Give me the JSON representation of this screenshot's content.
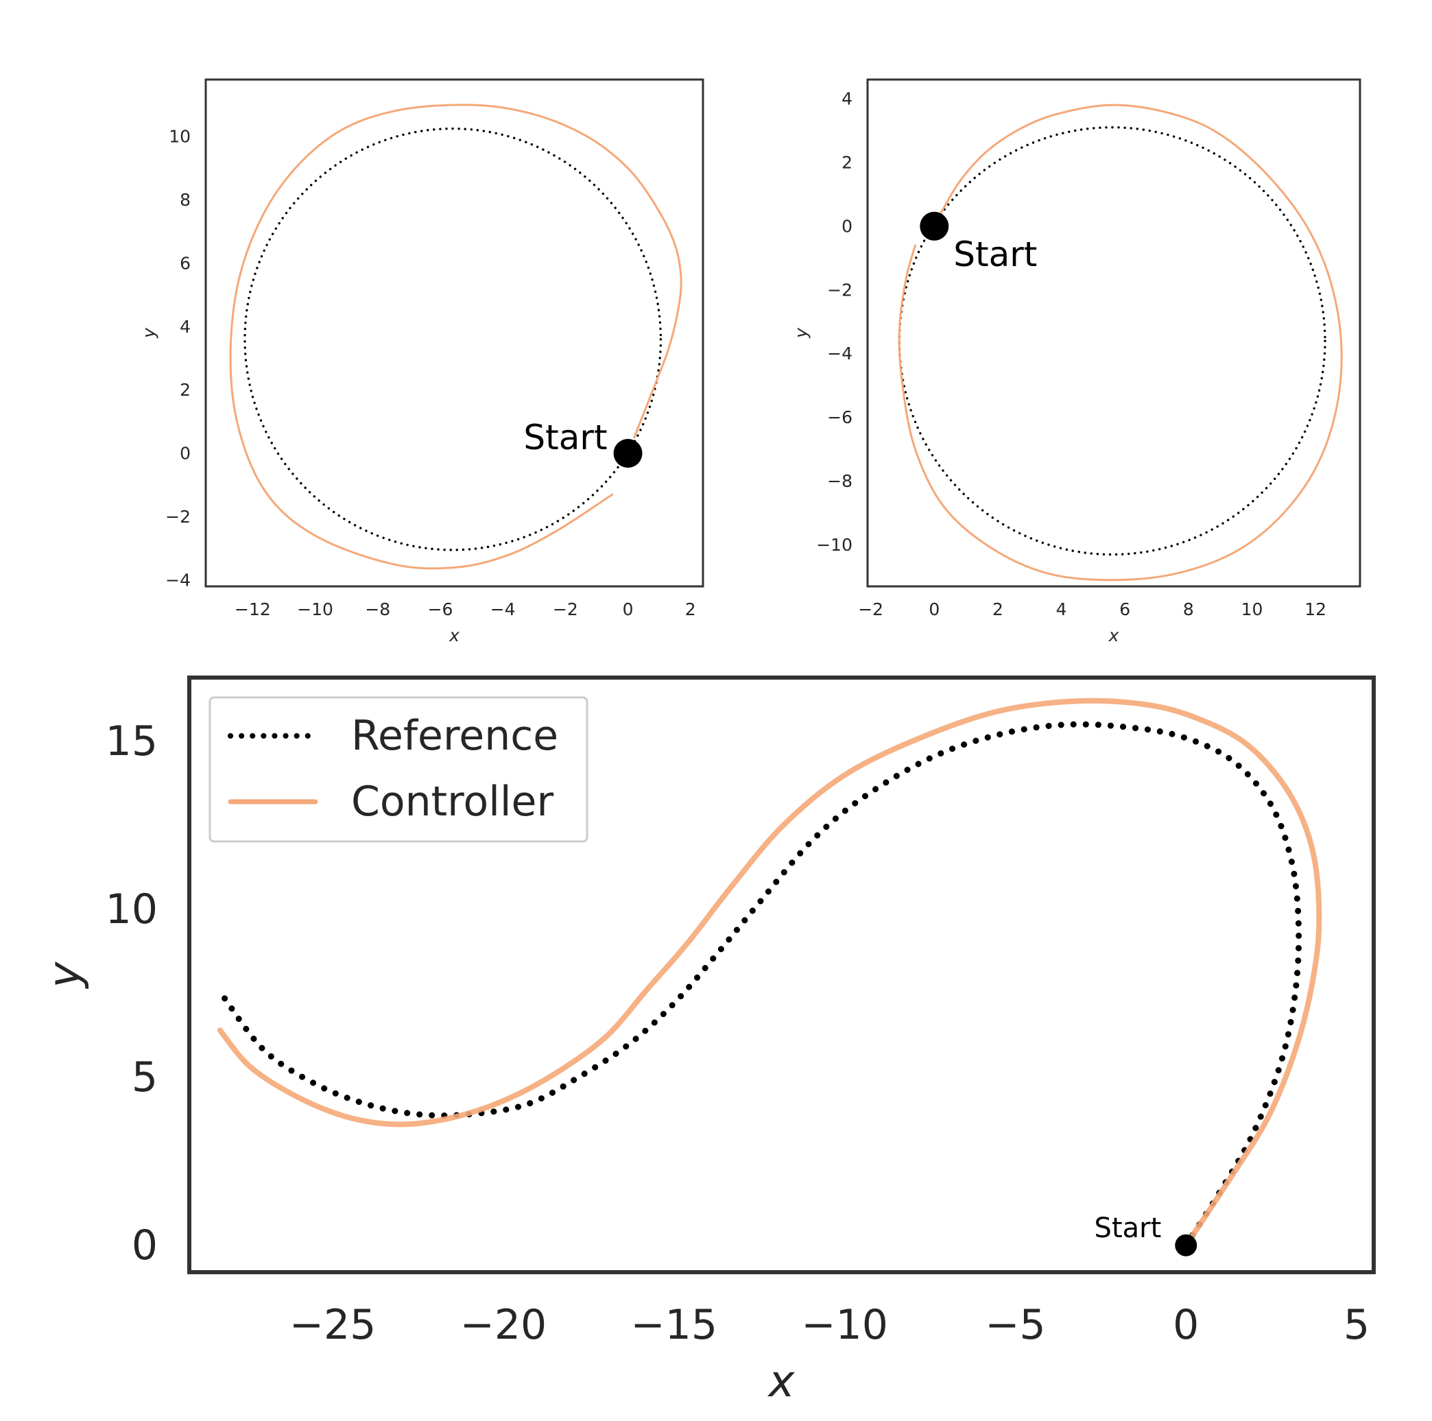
{
  "chart_data": [
    {
      "type": "line",
      "panel": "top-left",
      "xlabel": "x",
      "ylabel": "y",
      "xlim": [
        -13.5,
        2.4
      ],
      "ylim": [
        -4.2,
        11.8
      ],
      "xticks": [
        -12,
        -10,
        -8,
        -6,
        -4,
        -2,
        0,
        2
      ],
      "yticks": [
        -4,
        -2,
        0,
        2,
        4,
        6,
        8,
        10
      ],
      "xtick_labels": [
        "−12",
        "−10",
        "−8",
        "−6",
        "−4",
        "−2",
        "0",
        "2"
      ],
      "ytick_labels": [
        "−4",
        "−2",
        "0",
        "2",
        "4",
        "6",
        "8",
        "10"
      ],
      "grid": false,
      "annotation": {
        "text": "Start",
        "x": 0,
        "y": 0
      },
      "series": [
        {
          "role": "reference",
          "style": "dotted",
          "color": "#000000",
          "shape": "circle",
          "center": [
            -5.6,
            3.6
          ],
          "radius": 6.65
        },
        {
          "role": "controller",
          "style": "solid",
          "color": "#f5a878",
          "x": [
            0.2,
            0.8,
            1.3,
            1.6,
            1.7,
            1.5,
            0.9,
            0.0,
            -1.3,
            -3.0,
            -5.0,
            -7.5,
            -9.5,
            -11.2,
            -12.3,
            -12.7,
            -12.5,
            -11.6,
            -10.0,
            -7.5,
            -5.5,
            -3.8,
            -2.2,
            -0.5
          ],
          "y": [
            0.5,
            2.0,
            3.3,
            4.5,
            5.5,
            6.6,
            7.8,
            9.0,
            10.0,
            10.7,
            11.0,
            10.8,
            10.0,
            8.3,
            6.0,
            3.5,
            1.0,
            -1.2,
            -2.6,
            -3.5,
            -3.6,
            -3.2,
            -2.4,
            -1.3
          ]
        }
      ]
    },
    {
      "type": "line",
      "panel": "top-right",
      "xlabel": "x",
      "ylabel": "y",
      "xlim": [
        -2.1,
        13.4
      ],
      "ylim": [
        -11.3,
        4.6
      ],
      "xticks": [
        -2,
        0,
        2,
        4,
        6,
        8,
        10,
        12
      ],
      "yticks": [
        -10,
        -8,
        -6,
        -4,
        -2,
        0,
        2,
        4
      ],
      "xtick_labels": [
        "−2",
        "0",
        "2",
        "4",
        "6",
        "8",
        "10",
        "12"
      ],
      "ytick_labels": [
        "−10",
        "−8",
        "−6",
        "−4",
        "−2",
        "0",
        "2",
        "4"
      ],
      "grid": false,
      "annotation": {
        "text": "Start",
        "x": 0,
        "y": 0
      },
      "series": [
        {
          "role": "reference",
          "style": "dotted",
          "color": "#000000",
          "shape": "circle",
          "center": [
            5.6,
            -3.6
          ],
          "radius": 6.7
        },
        {
          "role": "controller",
          "style": "solid",
          "color": "#f5a878",
          "x": [
            0.2,
            0.8,
            1.6,
            2.6,
            3.8,
            5.5,
            7.2,
            8.8,
            10.3,
            11.6,
            12.4,
            12.8,
            12.7,
            12.1,
            11.0,
            9.5,
            7.6,
            5.6,
            3.6,
            1.8,
            0.3,
            -0.6,
            -1.0,
            -1.1,
            -0.9,
            -0.6
          ],
          "y": [
            0.4,
            1.4,
            2.3,
            3.0,
            3.5,
            3.8,
            3.6,
            3.0,
            1.8,
            0.2,
            -1.5,
            -3.5,
            -5.5,
            -7.4,
            -9.0,
            -10.2,
            -10.9,
            -11.1,
            -10.9,
            -10.1,
            -8.8,
            -7.0,
            -5.0,
            -3.3,
            -1.7,
            -0.6
          ]
        }
      ]
    },
    {
      "type": "line",
      "panel": "bottom",
      "xlabel": "x",
      "ylabel": "y",
      "xlim": [
        -29.2,
        5.5
      ],
      "ylim": [
        -0.8,
        16.9
      ],
      "xticks": [
        -25,
        -20,
        -15,
        -10,
        -5,
        0,
        5
      ],
      "yticks": [
        0,
        5,
        10,
        15
      ],
      "xtick_labels": [
        "−25",
        "−20",
        "−15",
        "−10",
        "−5",
        "0",
        "5"
      ],
      "ytick_labels": [
        "0",
        "5",
        "10",
        "15"
      ],
      "grid": false,
      "legend": "top-left",
      "annotation": {
        "text": "Start",
        "x": 0,
        "y": 0
      },
      "series": [
        {
          "name": "Reference",
          "style": "dotted",
          "color": "#000000",
          "x": [
            0.0,
            1.0,
            2.0,
            2.8,
            3.2,
            3.3,
            3.1,
            2.5,
            1.4,
            0.0,
            -1.5,
            -3.5,
            -5.5,
            -7.5,
            -9.5,
            -11.0,
            -12.5,
            -13.8,
            -15.0,
            -16.3,
            -17.8,
            -19.3,
            -21.0,
            -22.5,
            -24.0,
            -25.5,
            -27.0,
            -28.2
          ],
          "y": [
            0.0,
            1.6,
            3.4,
            5.5,
            7.5,
            9.5,
            11.4,
            13.1,
            14.4,
            15.1,
            15.4,
            15.5,
            15.2,
            14.5,
            13.3,
            12.0,
            10.2,
            8.6,
            7.2,
            6.0,
            5.0,
            4.2,
            3.9,
            3.9,
            4.2,
            4.8,
            5.8,
            7.4
          ]
        },
        {
          "name": "Controller",
          "style": "solid",
          "color": "#f5a878",
          "x": [
            0.2,
            1.3,
            2.4,
            3.2,
            3.7,
            3.9,
            3.7,
            3.0,
            1.8,
            0.3,
            -1.2,
            -3.2,
            -5.5,
            -7.8,
            -10.0,
            -11.8,
            -13.3,
            -14.6,
            -15.8,
            -17.0,
            -18.5,
            -20.0,
            -21.5,
            -23.0,
            -24.5,
            -26.0,
            -27.4,
            -28.3
          ],
          "y": [
            0.3,
            2.0,
            3.8,
            5.8,
            7.8,
            9.7,
            11.8,
            13.5,
            14.9,
            15.7,
            16.1,
            16.2,
            15.9,
            15.1,
            14.0,
            12.5,
            10.7,
            9.0,
            7.6,
            6.2,
            5.1,
            4.3,
            3.8,
            3.6,
            3.8,
            4.4,
            5.3,
            6.4
          ]
        }
      ]
    }
  ]
}
